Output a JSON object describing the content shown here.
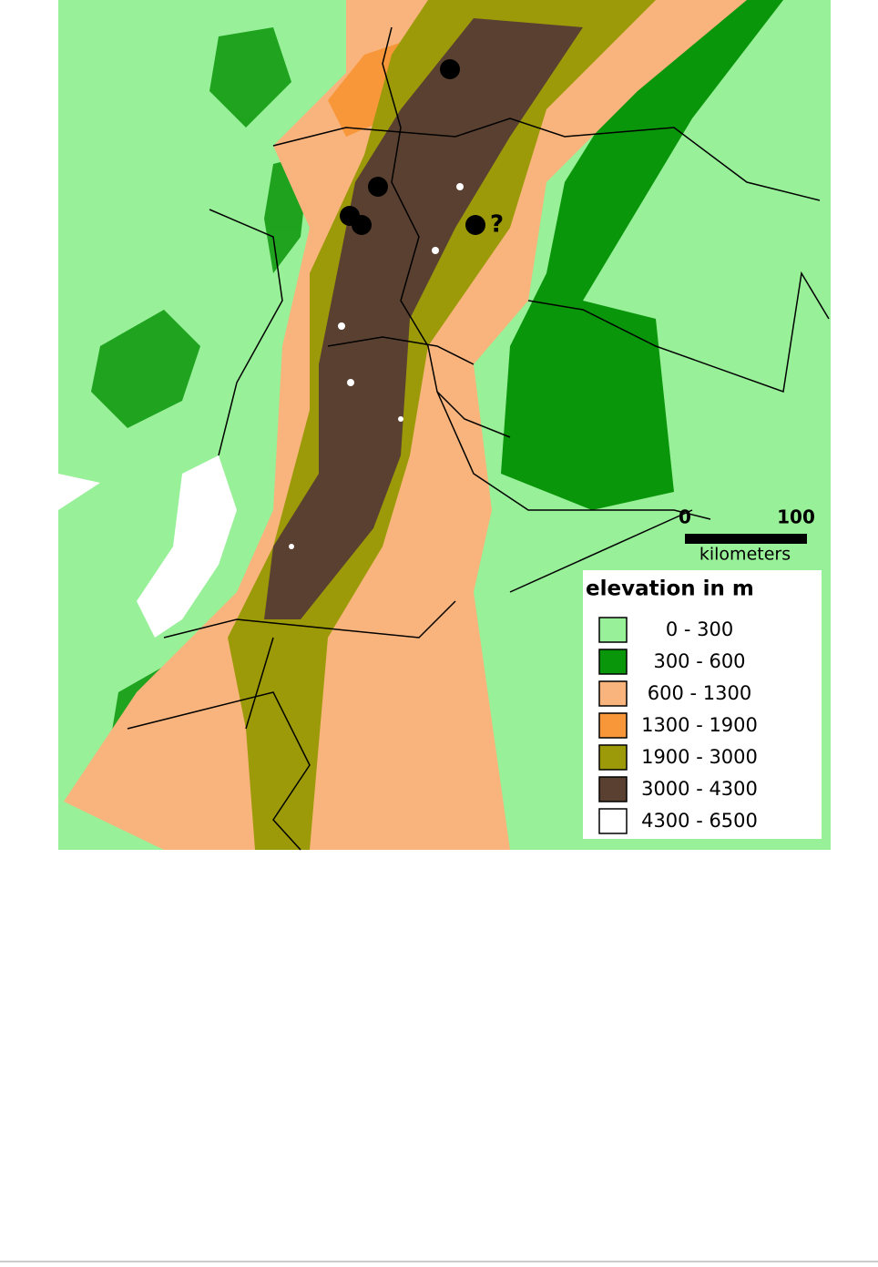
{
  "map": {
    "annotation": "?",
    "scale": {
      "start": "0",
      "end": "100",
      "unit": "kilometers"
    },
    "legend": {
      "title": "elevation in m",
      "items": [
        {
          "label": "0 - 300",
          "color": "#98f098"
        },
        {
          "label": "300 - 600",
          "color": "#0a960a"
        },
        {
          "label": "600 - 1300",
          "color": "#f8b47c"
        },
        {
          "label": "1300 - 1900",
          "color": "#f8963a"
        },
        {
          "label": "1900 - 3000",
          "color": "#9c9a08"
        },
        {
          "label": "3000 - 4300",
          "color": "#5a4030"
        },
        {
          "label": "4300 - 6500",
          "color": "#ffffff"
        }
      ]
    }
  }
}
